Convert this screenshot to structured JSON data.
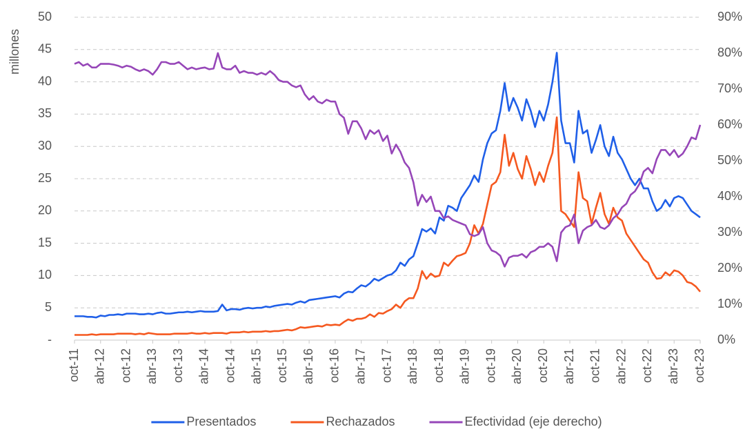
{
  "chart_data": {
    "type": "line",
    "ylabel": "millones",
    "categories": [
      "oct-11",
      null,
      null,
      null,
      null,
      null,
      "abr-12",
      null,
      null,
      null,
      null,
      null,
      "oct-12",
      null,
      null,
      null,
      null,
      null,
      "abr-13",
      null,
      null,
      null,
      null,
      null,
      "oct-13",
      null,
      null,
      null,
      null,
      null,
      "abr-14",
      null,
      null,
      null,
      null,
      null,
      "oct-14",
      null,
      null,
      null,
      null,
      null,
      "abr-15",
      null,
      null,
      null,
      null,
      null,
      "oct-15",
      null,
      null,
      null,
      null,
      null,
      "abr-16",
      null,
      null,
      null,
      null,
      null,
      "oct-16",
      null,
      null,
      null,
      null,
      null,
      "abr-17",
      null,
      null,
      null,
      null,
      null,
      "oct-17",
      null,
      null,
      null,
      null,
      null,
      "abr-18",
      null,
      null,
      null,
      null,
      null,
      "oct-18",
      null,
      null,
      null,
      null,
      null,
      "abr-19",
      null,
      null,
      null,
      null,
      null,
      "oct-19",
      null,
      null,
      null,
      null,
      null,
      "abr-20",
      null,
      null,
      null,
      null,
      null,
      "oct-20",
      null,
      null,
      null,
      null,
      null,
      "abr-21",
      null,
      null,
      null,
      null,
      null,
      "oct-21",
      null,
      null,
      null,
      null,
      null,
      "abr-22",
      null,
      null,
      null,
      null,
      null,
      "oct-22",
      null,
      null,
      null,
      null,
      null,
      "abr-23",
      null,
      null,
      null,
      null,
      null,
      "oct-23"
    ],
    "series": [
      {
        "name": "Presentados",
        "color": "#1f5fe8",
        "values": [
          3.7,
          3.7,
          3.7,
          3.6,
          3.6,
          3.5,
          3.8,
          3.7,
          3.9,
          3.9,
          4.0,
          3.9,
          4.1,
          4.1,
          4.1,
          4.0,
          4.0,
          4.1,
          4.0,
          4.2,
          4.3,
          4.1,
          4.1,
          4.2,
          4.3,
          4.3,
          4.4,
          4.3,
          4.4,
          4.5,
          4.4,
          4.4,
          4.4,
          4.5,
          5.5,
          4.6,
          4.8,
          4.8,
          4.7,
          4.9,
          5.0,
          4.9,
          5.0,
          5.0,
          5.2,
          5.1,
          5.3,
          5.4,
          5.5,
          5.6,
          5.5,
          5.8,
          6.0,
          5.8,
          6.2,
          6.3,
          6.4,
          6.5,
          6.6,
          6.7,
          6.8,
          6.6,
          7.2,
          7.5,
          7.4,
          8.0,
          8.5,
          8.3,
          8.8,
          9.5,
          9.2,
          9.6,
          10.0,
          10.2,
          10.8,
          12.0,
          11.5,
          12.5,
          13.0,
          15.0,
          17.2,
          16.8,
          17.3,
          16.5,
          19.0,
          18.5,
          20.8,
          20.5,
          20.0,
          22.0,
          23.0,
          24.0,
          25.5,
          24.5,
          28.0,
          30.5,
          32.0,
          32.5,
          35.5,
          39.8,
          35.5,
          37.5,
          36.0,
          34.0,
          37.3,
          35.5,
          33.0,
          35.5,
          34.0,
          36.5,
          40.0,
          44.5,
          34.0,
          30.5,
          30.5,
          27.5,
          35.5,
          32.0,
          32.5,
          29.0,
          31.0,
          33.3,
          30.0,
          28.5,
          31.5,
          29.0,
          28.0,
          26.5,
          25.0,
          24.0,
          25.0,
          23.5,
          23.5,
          21.5,
          20.0,
          20.5,
          21.7,
          20.7,
          22.0,
          22.3,
          22.0,
          21.0,
          20.0,
          19.5,
          19.0
        ]
      },
      {
        "name": "Rechazados",
        "color": "#f5581f",
        "values": [
          0.8,
          0.8,
          0.8,
          0.8,
          0.9,
          0.8,
          0.9,
          0.9,
          0.9,
          0.9,
          1.0,
          1.0,
          1.0,
          1.0,
          0.9,
          1.0,
          0.9,
          1.1,
          1.0,
          0.9,
          0.9,
          0.9,
          0.9,
          1.0,
          1.0,
          1.0,
          1.0,
          1.1,
          1.0,
          1.0,
          1.1,
          1.0,
          1.1,
          1.1,
          1.1,
          1.0,
          1.2,
          1.2,
          1.2,
          1.3,
          1.2,
          1.3,
          1.3,
          1.3,
          1.4,
          1.3,
          1.4,
          1.4,
          1.5,
          1.6,
          1.5,
          1.7,
          2.0,
          1.9,
          2.0,
          2.1,
          2.2,
          2.1,
          2.4,
          2.3,
          2.4,
          2.3,
          2.8,
          3.2,
          3.0,
          3.3,
          3.3,
          3.5,
          4.0,
          3.6,
          4.2,
          4.1,
          4.5,
          4.8,
          5.5,
          5.0,
          6.0,
          6.5,
          6.5,
          8.0,
          10.7,
          9.5,
          10.3,
          9.8,
          10.0,
          12.0,
          11.5,
          12.3,
          13.0,
          13.2,
          13.5,
          15.0,
          17.8,
          16.5,
          18.0,
          21.0,
          24.0,
          24.5,
          26.0,
          31.8,
          27.0,
          29.0,
          26.5,
          25.0,
          28.5,
          26.5,
          24.0,
          26.0,
          24.5,
          27.0,
          29.0,
          34.5,
          20.0,
          19.5,
          18.5,
          17.5,
          26.0,
          22.0,
          21.5,
          18.0,
          20.5,
          22.8,
          19.5,
          18.0,
          20.5,
          19.0,
          18.5,
          16.5,
          15.5,
          14.5,
          13.5,
          12.5,
          12.0,
          10.5,
          9.5,
          9.6,
          10.5,
          10.0,
          10.8,
          10.6,
          10.0,
          9.0,
          8.8,
          8.3,
          7.5
        ]
      },
      {
        "name": "Efectividad (eje derecho)",
        "color": "#9646b8",
        "axis": "y2",
        "values": [
          77.0,
          77.5,
          76.5,
          77.0,
          76.0,
          76.0,
          77.0,
          77.0,
          77.0,
          76.8,
          76.5,
          76.0,
          76.5,
          76.2,
          75.5,
          75.0,
          75.5,
          75.0,
          74.0,
          75.5,
          77.5,
          77.5,
          77.0,
          77.0,
          77.5,
          76.5,
          75.5,
          76.0,
          75.5,
          75.8,
          76.0,
          75.5,
          75.7,
          80.0,
          76.0,
          75.5,
          75.5,
          76.5,
          74.5,
          75.0,
          74.5,
          74.5,
          74.0,
          74.5,
          74.0,
          75.0,
          74.0,
          72.5,
          72.0,
          72.0,
          71.0,
          70.5,
          71.0,
          68.5,
          67.0,
          68.0,
          66.5,
          66.0,
          67.0,
          66.5,
          66.5,
          63.0,
          62.0,
          57.5,
          61.0,
          61.0,
          59.0,
          56.0,
          58.5,
          57.5,
          58.5,
          55.5,
          57.0,
          52.0,
          54.5,
          52.5,
          49.5,
          48.0,
          44.0,
          37.5,
          40.5,
          38.5,
          40.0,
          36.0,
          36.0,
          34.0,
          34.5,
          33.5,
          33.0,
          32.5,
          32.0,
          29.5,
          29.0,
          29.5,
          31.5,
          27.0,
          25.0,
          24.5,
          23.5,
          20.5,
          23.0,
          23.5,
          23.5,
          24.0,
          23.0,
          24.5,
          25.0,
          26.0,
          26.0,
          27.0,
          26.0,
          22.0,
          30.0,
          31.5,
          32.0,
          35.0,
          27.0,
          30.5,
          31.5,
          32.0,
          33.5,
          31.5,
          31.0,
          32.0,
          34.0,
          35.0,
          37.0,
          38.0,
          40.5,
          41.5,
          43.5,
          47.0,
          48.0,
          46.5,
          50.5,
          53.0,
          53.0,
          51.5,
          53.0,
          51.0,
          52.0,
          54.0,
          56.5,
          56.0,
          60.0
        ]
      }
    ],
    "ylim": [
      0,
      50
    ],
    "yticks": [
      {
        "value": 0,
        "label": "-"
      },
      5,
      10,
      15,
      20,
      25,
      30,
      35,
      40,
      45,
      50
    ],
    "y2lim": [
      0,
      90
    ],
    "y2ticks": [
      {
        "value": 0,
        "label": "0%"
      },
      {
        "value": 10,
        "label": "10%"
      },
      {
        "value": 20,
        "label": "20%"
      },
      {
        "value": 30,
        "label": "30%"
      },
      {
        "value": 40,
        "label": "40%"
      },
      {
        "value": 50,
        "label": "50%"
      },
      {
        "value": 60,
        "label": "60%"
      },
      {
        "value": 70,
        "label": "70%"
      },
      {
        "value": 80,
        "label": "80%"
      },
      {
        "value": 90,
        "label": "90%"
      }
    ],
    "grid": true,
    "legend": "bottom"
  }
}
